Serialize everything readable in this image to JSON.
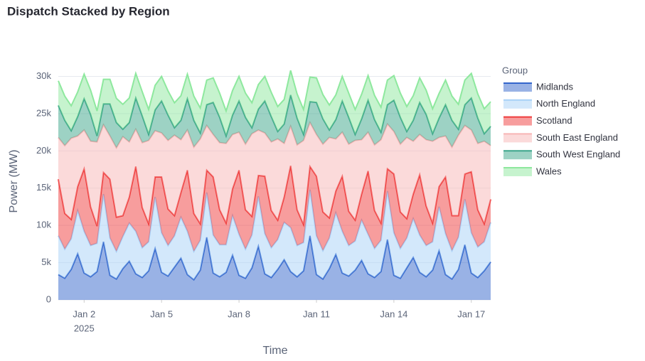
{
  "chart_data": {
    "type": "stacked_area",
    "title": "Dispatch Stacked by Region",
    "x_label": "Time",
    "y_label": "Power (MW)",
    "legend_title": "Group",
    "x_year_label": "2025",
    "grid": true,
    "legend": "right",
    "xlim": [
      1,
      17.75
    ],
    "ylim": [
      0,
      31000
    ],
    "xticks": [
      {
        "value": 2,
        "label": "Jan 2"
      },
      {
        "value": 5,
        "label": "Jan 5"
      },
      {
        "value": 8,
        "label": "Jan 8"
      },
      {
        "value": 11,
        "label": "Jan 11"
      },
      {
        "value": 14,
        "label": "Jan 14"
      },
      {
        "value": 17,
        "label": "Jan 17"
      }
    ],
    "yticks": [
      0,
      {
        "value": 5000,
        "label": "5k"
      },
      {
        "value": 10000,
        "label": "10k"
      },
      {
        "value": 15000,
        "label": "15k"
      },
      {
        "value": 20000,
        "label": "20k"
      },
      {
        "value": 25000,
        "label": "25k"
      },
      {
        "value": 30000,
        "label": "30k"
      }
    ],
    "x": [
      1,
      1.25,
      1.5,
      1.75,
      2,
      2.25,
      2.5,
      2.75,
      3,
      3.25,
      3.5,
      3.75,
      4,
      4.25,
      4.5,
      4.75,
      5,
      5.25,
      5.5,
      5.75,
      6,
      6.25,
      6.5,
      6.75,
      7,
      7.25,
      7.5,
      7.75,
      8,
      8.25,
      8.5,
      8.75,
      9,
      9.25,
      9.5,
      9.75,
      10,
      10.25,
      10.5,
      10.75,
      11,
      11.25,
      11.5,
      11.75,
      12,
      12.25,
      12.5,
      12.75,
      13,
      13.25,
      13.5,
      13.75,
      14,
      14.25,
      14.5,
      14.75,
      15,
      15.25,
      15.5,
      15.75,
      16,
      16.25,
      16.5,
      16.75,
      17,
      17.25,
      17.5,
      17.75
    ],
    "series": [
      {
        "name": "Midlands",
        "color": "#3366cc",
        "values": [
          3400,
          2900,
          4100,
          6200,
          3600,
          3100,
          3800,
          7800,
          3300,
          2800,
          4200,
          5200,
          3500,
          3000,
          3900,
          6900,
          3700,
          3200,
          4400,
          5600,
          3400,
          2700,
          4000,
          8400,
          3600,
          3100,
          3700,
          6000,
          3300,
          2900,
          4300,
          7200,
          3500,
          3000,
          4100,
          5400,
          3800,
          3100,
          3900,
          8600,
          3400,
          2800,
          4200,
          6100,
          3600,
          3200,
          4000,
          5300,
          3500,
          3000,
          3800,
          8100,
          3300,
          2900,
          4300,
          5700,
          3700,
          3100,
          4000,
          6600,
          3400,
          2800,
          4100,
          7400,
          3600,
          3000,
          3900,
          5100
        ]
      },
      {
        "name": "North England",
        "color": "#a8d1f7",
        "values": [
          5200,
          3900,
          4100,
          5800,
          5600,
          4200,
          3800,
          6400,
          5000,
          3700,
          4300,
          5100,
          5700,
          4000,
          3900,
          6900,
          5300,
          4100,
          4200,
          5500,
          5800,
          3800,
          4000,
          6000,
          5100,
          4300,
          3700,
          5300,
          5500,
          3900,
          4400,
          6700,
          5400,
          4000,
          4000,
          5000,
          5900,
          4200,
          3800,
          6200,
          5200,
          3800,
          4100,
          5600,
          5600,
          4100,
          3900,
          5400,
          5300,
          3900,
          4200,
          6500,
          5700,
          4000,
          4000,
          5200,
          5000,
          4200,
          3800,
          5900,
          5500,
          3800,
          4300,
          6100,
          5400,
          4100,
          3900,
          5300
        ]
      },
      {
        "name": "Scotland",
        "color": "#ef3b3b",
        "values": [
          7600,
          4800,
          2600,
          3200,
          8400,
          5200,
          2300,
          2900,
          7900,
          4600,
          2800,
          3500,
          8700,
          5400,
          2400,
          2700,
          7500,
          4900,
          2700,
          3300,
          8200,
          5100,
          2200,
          3000,
          7800,
          4700,
          2900,
          3600,
          8600,
          5300,
          2500,
          2800,
          7700,
          5000,
          2600,
          3400,
          8300,
          4800,
          2400,
          3100,
          8000,
          5200,
          2700,
          2900,
          7400,
          4600,
          2800,
          3500,
          8500,
          5100,
          2300,
          3000,
          7900,
          4900,
          2600,
          3300,
          8100,
          5300,
          2500,
          2700,
          7600,
          4700,
          2900,
          3400,
          8200,
          5000,
          2400,
          3100
        ]
      },
      {
        "name": "South East England",
        "color": "#f7b5b5",
        "values": [
          5600,
          9100,
          10900,
          6800,
          5200,
          8800,
          11300,
          6400,
          5800,
          9300,
          10600,
          7400,
          5000,
          8700,
          11200,
          6200,
          5900,
          9200,
          10800,
          7100,
          5400,
          8900,
          11400,
          6000,
          5700,
          9000,
          10700,
          7300,
          5100,
          8800,
          11100,
          6100,
          5800,
          9200,
          10900,
          7200,
          5300,
          8700,
          11300,
          5900,
          5600,
          9100,
          10800,
          7000,
          5900,
          9000,
          10700,
          7300,
          5200,
          8800,
          11200,
          6000,
          5700,
          9100,
          10900,
          7100,
          5400,
          8900,
          11000,
          6600,
          5500,
          9200,
          10800,
          6500,
          5600,
          8900,
          11100,
          7200
        ]
      },
      {
        "name": "South West England",
        "color": "#3ba58a",
        "values": [
          4300,
          3400,
          1000,
          2600,
          4200,
          3600,
          800,
          2800,
          4300,
          3400,
          1000,
          2600,
          4200,
          3600,
          800,
          2800,
          4300,
          3400,
          1000,
          2600,
          4200,
          3600,
          800,
          2800,
          4300,
          3400,
          1000,
          2600,
          4200,
          3600,
          800,
          2800,
          4300,
          3400,
          1000,
          2600,
          4200,
          3600,
          800,
          2800,
          4300,
          3400,
          1000,
          2600,
          4200,
          3600,
          800,
          2800,
          4300,
          3400,
          1000,
          2600,
          4200,
          3600,
          800,
          2800,
          4300,
          3400,
          1000,
          2600,
          4200,
          3600,
          800,
          2800,
          4300,
          3400,
          1000,
          2600
        ]
      },
      {
        "name": "Wales",
        "color": "#8ee89e",
        "values": [
          3300,
          3250,
          3350,
          3300,
          3300,
          3250,
          3350,
          3300,
          3300,
          3250,
          3350,
          3300,
          3300,
          3250,
          3350,
          3300,
          3300,
          3250,
          3350,
          3300,
          3300,
          3250,
          3350,
          3300,
          3300,
          3250,
          3350,
          3300,
          3300,
          3250,
          3350,
          3300,
          3300,
          3250,
          3350,
          3300,
          3300,
          3250,
          3350,
          3300,
          3300,
          3250,
          3350,
          3300,
          3300,
          3250,
          3350,
          3300,
          3300,
          3250,
          3350,
          3300,
          3300,
          3250,
          3350,
          3300,
          3300,
          3250,
          3350,
          3300,
          3300,
          3250,
          3350,
          3300,
          3300,
          3250,
          3350,
          3300
        ]
      }
    ]
  }
}
